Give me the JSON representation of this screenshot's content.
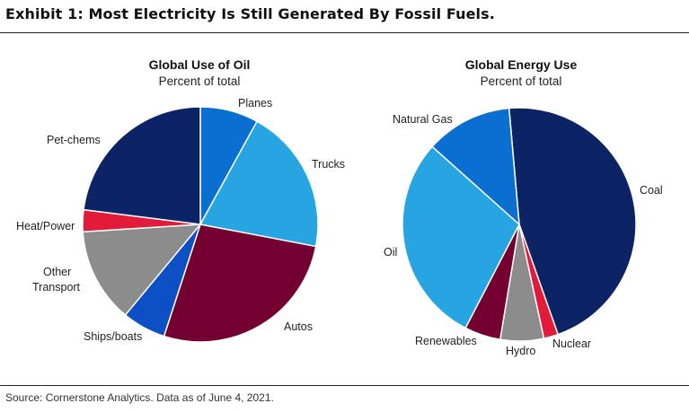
{
  "exhibit": {
    "title": "Exhibit 1: Most Electricity Is Still Generated By Fossil Fuels.",
    "source": "Source: Cornerstone Analytics. Data as of June 4, 2021."
  },
  "chart_data": [
    {
      "type": "pie",
      "title": "Global Use of Oil",
      "subtitle": "Percent of total",
      "start_angle_deg": 0,
      "direction": "clockwise",
      "slices": [
        {
          "label": "Planes",
          "value": 8,
          "color": "#0a6fd0"
        },
        {
          "label": "Trucks",
          "value": 20,
          "color": "#27a5e3"
        },
        {
          "label": "Autos",
          "value": 27,
          "color": "#730031"
        },
        {
          "label": "Ships/boats",
          "value": 6,
          "color": "#0d4fc4"
        },
        {
          "label": "Other Transport",
          "value": 13,
          "color": "#8c8c8c"
        },
        {
          "label": "Heat/Power",
          "value": 3,
          "color": "#e31b3b"
        },
        {
          "label": "Pet-chems",
          "value": 23,
          "color": "#0c2366"
        }
      ]
    },
    {
      "type": "pie",
      "title": "Global Energy Use",
      "subtitle": "Percent of total",
      "start_angle_deg": -5,
      "direction": "clockwise",
      "slices": [
        {
          "label": "Coal",
          "value": 46,
          "color": "#0c2366"
        },
        {
          "label": "Nuclear",
          "value": 2,
          "color": "#e31b3b"
        },
        {
          "label": "Hydro",
          "value": 6,
          "color": "#8c8c8c"
        },
        {
          "label": "Renewables",
          "value": 5,
          "color": "#730031"
        },
        {
          "label": "Oil",
          "value": 29,
          "color": "#27a5e3"
        },
        {
          "label": "Natural Gas",
          "value": 12,
          "color": "#0a6fd0"
        }
      ]
    }
  ]
}
